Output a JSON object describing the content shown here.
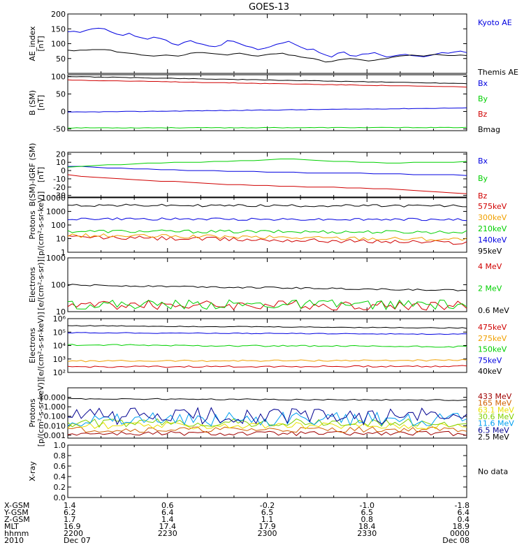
{
  "title": "GOES-13",
  "colors": {
    "black": "#000000",
    "blue": "#0000e0",
    "green": "#00d000",
    "red": "#d00000",
    "orange": "#f0a000",
    "darkred": "#a00000",
    "lightblue": "#00a0f0",
    "purple": "#a000a0",
    "yellow": "#e8e000",
    "olive": "#80d000",
    "navy": "#000090"
  },
  "chart_data": [
    {
      "type": "line",
      "id": "ae",
      "ylabel": "AE_index\n[nT]",
      "ylim": [
        0,
        200
      ],
      "log": false,
      "ticks": [
        {
          "v": 200,
          "label": "200"
        },
        {
          "v": 150,
          "label": "150"
        },
        {
          "v": 100,
          "label": "100"
        },
        {
          "v": 50,
          "label": "50"
        }
      ],
      "series": [
        {
          "name": "Kyoto AE",
          "color": "#0000e0",
          "values": [
            140,
            142,
            138,
            145,
            150,
            152,
            150,
            140,
            132,
            128,
            135,
            125,
            120,
            115,
            122,
            118,
            112,
            100,
            95,
            105,
            110,
            102,
            98,
            92,
            90,
            95,
            110,
            108,
            100,
            92,
            88,
            80,
            84,
            90,
            98,
            102,
            108,
            98,
            88,
            80,
            82,
            70,
            62,
            55,
            68,
            72,
            60,
            58,
            65,
            66,
            70,
            62,
            55,
            58,
            62,
            64,
            60,
            58,
            56,
            60,
            65,
            70,
            68,
            72,
            75,
            70
          ]
        },
        {
          "name": "Themis AE",
          "color": "#000000",
          "values": [
            78,
            76,
            78,
            78,
            80,
            80,
            80,
            78,
            72,
            70,
            68,
            66,
            62,
            60,
            58,
            60,
            62,
            60,
            58,
            62,
            68,
            70,
            70,
            68,
            66,
            64,
            62,
            66,
            68,
            64,
            60,
            58,
            62,
            65,
            66,
            68,
            62,
            60,
            55,
            52,
            50,
            45,
            38,
            40,
            45,
            48,
            50,
            48,
            45,
            42,
            44,
            48,
            50,
            55,
            58,
            60,
            62,
            60,
            58,
            62,
            64,
            62,
            60,
            60,
            62,
            60
          ]
        }
      ]
    },
    {
      "type": "line",
      "id": "b",
      "ylabel": "B (SM)\n[nT]",
      "ylim": [
        -55,
        105
      ],
      "log": false,
      "ticks": [
        {
          "v": 100,
          "label": "100"
        },
        {
          "v": 50,
          "label": "50"
        },
        {
          "v": 0,
          "label": "0"
        },
        {
          "v": -50,
          "label": "-50"
        }
      ],
      "series": [
        {
          "name": "Bx",
          "color": "#0000e0",
          "start": -2,
          "end": 10
        },
        {
          "name": "By",
          "color": "#00d000",
          "start": -47,
          "end": -46
        },
        {
          "name": "Bz",
          "color": "#d00000",
          "start": 90,
          "end": 70
        },
        {
          "name": "Bmag",
          "color": "#000000",
          "start": 100,
          "end": 80
        }
      ]
    },
    {
      "type": "line",
      "id": "bigrf",
      "ylabel": "B(SM)-IGRF (SM)\n[nT]",
      "ylim": [
        -32,
        22
      ],
      "log": false,
      "ticks": [
        {
          "v": 20,
          "label": "20"
        },
        {
          "v": 10,
          "label": "10"
        },
        {
          "v": 0,
          "label": "0"
        },
        {
          "v": -10,
          "label": "-10"
        },
        {
          "v": -20,
          "label": "-20"
        },
        {
          "v": -30,
          "label": "-30"
        }
      ],
      "series": [
        {
          "name": "Bx",
          "color": "#0000e0",
          "values": [
            5,
            5,
            4,
            3,
            3,
            2,
            2,
            1,
            1,
            0,
            0,
            0,
            -1,
            -1,
            -1,
            -2,
            -2,
            -2,
            -3,
            -3,
            -3,
            -3,
            -3,
            -4,
            -4,
            -4,
            -5,
            -5,
            -5,
            -5,
            -6
          ]
        },
        {
          "name": "By",
          "color": "#00d000",
          "values": [
            4,
            5,
            6,
            7,
            7,
            8,
            9,
            9,
            10,
            10,
            10,
            11,
            11,
            12,
            12,
            13,
            14,
            14,
            13,
            12,
            11,
            11,
            10,
            10,
            9,
            9,
            10,
            10,
            10,
            10,
            11
          ]
        },
        {
          "name": "Bz",
          "color": "#d00000",
          "values": [
            -5,
            -7,
            -8,
            -9,
            -10,
            -11,
            -12,
            -13,
            -13,
            -14,
            -15,
            -16,
            -17,
            -17,
            -18,
            -18,
            -19,
            -19,
            -20,
            -20,
            -20,
            -21,
            -21,
            -22,
            -22,
            -23,
            -24,
            -25,
            -26,
            -27,
            -28
          ]
        }
      ]
    },
    {
      "type": "line",
      "id": "protons1",
      "ylabel": "Protons\n[p/(cm²-s-sr-keV)]",
      "ylim": [
        1,
        10000
      ],
      "log": true,
      "ticks": [
        {
          "v": 10000,
          "label": "10000"
        },
        {
          "v": 1000,
          "label": "1000"
        },
        {
          "v": 100,
          "label": "100"
        },
        {
          "v": 10,
          "label": "10"
        },
        {
          "v": 1,
          "label": "1"
        }
      ],
      "series": [
        {
          "name": "575keV",
          "color": "#d00000",
          "start": 13,
          "end": 5,
          "noise": 0.05
        },
        {
          "name": "300keV",
          "color": "#f0a000",
          "start": 17,
          "end": 9,
          "noise": 0.05
        },
        {
          "name": "210keV",
          "color": "#00d000",
          "start": 35,
          "end": 30,
          "noise": 0.04
        },
        {
          "name": "140keV",
          "color": "#0000e0",
          "start": 280,
          "end": 250,
          "noise": 0.03
        },
        {
          "name": "95keV",
          "color": "#000000",
          "start": 2800,
          "end": 2500,
          "noise": 0.03
        }
      ]
    },
    {
      "type": "line",
      "id": "electrons1",
      "ylabel": "Electrons\n[e/(cm²-s-sr)]",
      "ylim": [
        10,
        1000
      ],
      "log": true,
      "ticks": [
        {
          "v": 1000,
          "label": "1000"
        },
        {
          "v": 100,
          "label": "100"
        },
        {
          "v": 10,
          "label": "10"
        }
      ],
      "series": [
        {
          "name": "4 MeV",
          "color": "#d00000",
          "start": 18,
          "end": 17,
          "noise": 0.06
        },
        {
          "name": "2 MeV",
          "color": "#00d000",
          "start": 19,
          "end": 18,
          "noise": 0.06
        },
        {
          "name": "0.6 MeV",
          "color": "#000000",
          "start": 98,
          "end": 62,
          "noise": 0.01
        }
      ]
    },
    {
      "type": "line",
      "id": "electrons2",
      "ylabel": "Electrons\n[e/(cm²-s-sr-keV)]",
      "ylim": [
        100,
        1000000
      ],
      "log": true,
      "ticks": [
        {
          "v": 1000000,
          "label": "10⁶"
        },
        {
          "v": 100000,
          "label": "10⁵"
        },
        {
          "v": 10000,
          "label": "10⁴"
        },
        {
          "v": 1000,
          "label": "10³"
        },
        {
          "v": 100,
          "label": "10²"
        }
      ],
      "series": [
        {
          "name": "475keV",
          "color": "#d00000",
          "start": 260,
          "end": 290,
          "noise": 0.02
        },
        {
          "name": "275keV",
          "color": "#f0a000",
          "start": 700,
          "end": 800,
          "noise": 0.02
        },
        {
          "name": "150keV",
          "color": "#00d000",
          "start": 11000,
          "end": 8000,
          "noise": 0.02
        },
        {
          "name": "75keV",
          "color": "#0000e0",
          "start": 90000,
          "end": 70000,
          "noise": 0.01
        },
        {
          "name": "40keV",
          "color": "#000000",
          "start": 300000,
          "end": 200000,
          "noise": 0.01
        }
      ]
    },
    {
      "type": "line",
      "id": "protons2",
      "ylabel": "Protons\n[p/(cm²-s-sr-keV)]",
      "ylim": [
        0.0005,
        100
      ],
      "log": true,
      "ticks": [
        {
          "v": 10,
          "label": "10.000"
        },
        {
          "v": 1,
          "label": "1.000"
        },
        {
          "v": 0.1,
          "label": "0.100"
        },
        {
          "v": 0.01,
          "label": "0.010"
        },
        {
          "v": 0.001,
          "label": "0.001"
        }
      ],
      "series": [
        {
          "name": "433 MeV",
          "color": "#a00000",
          "start": 0.0015,
          "end": 0.0015,
          "noise": 0.08
        },
        {
          "name": "165 MeV",
          "color": "#d06000",
          "start": 0.004,
          "end": 0.004,
          "noise": 0.1
        },
        {
          "name": "63.1 MeV",
          "color": "#e8e000",
          "start": 0.01,
          "end": 0.01,
          "noise": 0.12
        },
        {
          "name": "30.6 MeV",
          "color": "#80d000",
          "start": 0.02,
          "end": 0.02,
          "noise": 0.15
        },
        {
          "name": "11.6 MeV",
          "color": "#00a0f0",
          "start": 0.05,
          "end": 0.05,
          "noise": 0.25
        },
        {
          "name": "6.5 MeV",
          "color": "#000090",
          "start": 0.1,
          "end": 0.1,
          "noise": 0.3
        },
        {
          "name": "2.5 MeV",
          "color": "#000000",
          "start": 7,
          "end": 5,
          "noise": 0.02
        }
      ]
    },
    {
      "type": "line",
      "id": "xray",
      "ylabel": "X-ray",
      "ylim": [
        0,
        1
      ],
      "log": false,
      "ticks": [
        {
          "v": 1.0,
          "label": "1.0"
        },
        {
          "v": 0.8,
          "label": "0.8"
        },
        {
          "v": 0.6,
          "label": "0.6"
        },
        {
          "v": 0.4,
          "label": "0.4"
        },
        {
          "v": 0.2,
          "label": "0.2"
        },
        {
          "v": 0.0,
          "label": "0.0"
        }
      ],
      "series": [],
      "nodata": "No data"
    }
  ],
  "footer": {
    "labels": [
      "X-GSM",
      "Y-GSM",
      "Z-GSM",
      "MLT",
      "hhmm",
      "2010"
    ],
    "columns": [
      [
        "1.4",
        "6.2",
        "1.7",
        "16.9",
        "2200",
        "Dec 07"
      ],
      [
        "0.6",
        "6.4",
        "1.4",
        "17.4",
        "2230",
        ""
      ],
      [
        "-0.2",
        "6.5",
        "1.1",
        "17.9",
        "2300",
        ""
      ],
      [
        "-1.0",
        "6.5",
        "0.8",
        "18.4",
        "2330",
        ""
      ],
      [
        "-1.8",
        "6.4",
        "0.4",
        "18.9",
        "0000",
        "Dec 08"
      ]
    ]
  }
}
